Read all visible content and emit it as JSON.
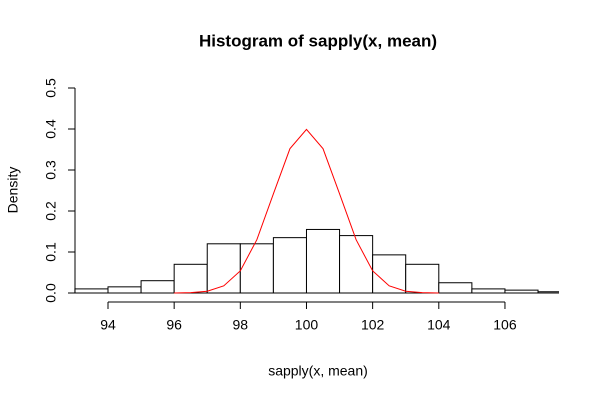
{
  "chart_data": {
    "type": "histogram",
    "title": "Histogram of sapply(x, mean)",
    "x_label": "sapply(x, mean)",
    "y_label": "Density",
    "bins": [
      93,
      94,
      95,
      96,
      97,
      98,
      99,
      100,
      101,
      102,
      103,
      104,
      105,
      106,
      107,
      108
    ],
    "values": [
      0.01,
      0.015,
      0.03,
      0.07,
      0.12,
      0.12,
      0.135,
      0.155,
      0.14,
      0.093,
      0.07,
      0.025,
      0.01,
      0.007,
      0.003
    ],
    "color": "#ffffff",
    "curve": {
      "color": "#ff0000",
      "x": [
        96,
        96.5,
        97,
        97.5,
        98,
        98.5,
        99,
        99.5,
        100,
        100.5,
        101,
        101.5,
        102,
        102.5,
        103,
        103.5,
        104
      ],
      "y": [
        0.0001,
        0.0009,
        0.0044,
        0.0175,
        0.054,
        0.13,
        0.242,
        0.352,
        0.399,
        0.352,
        0.242,
        0.13,
        0.054,
        0.0175,
        0.0044,
        0.0009,
        0.0001
      ]
    },
    "xlim": [
      92.8,
      107.6
    ],
    "ylim": [
      0,
      0.5
    ],
    "xticks": [
      94,
      96,
      98,
      100,
      102,
      104,
      106
    ],
    "yticks": [
      {
        "value": 0,
        "label": "0.0"
      },
      0.1,
      0.2,
      0.3,
      0.4,
      0.5
    ]
  }
}
